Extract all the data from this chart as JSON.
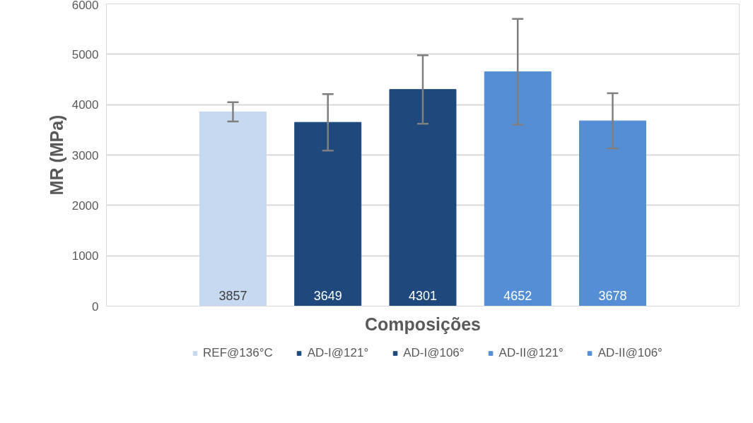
{
  "chart_data": {
    "type": "bar",
    "categories": [
      null
    ],
    "xlabel": "Composições",
    "ylabel": "MR (MPa)",
    "ylim": [
      0,
      6000
    ],
    "yticks": [
      0,
      1000,
      2000,
      3000,
      4000,
      5000,
      6000
    ],
    "grid": "y",
    "legend": "bottom",
    "data_labels": true,
    "series": [
      {
        "name": "REF@136°C",
        "color": "#c6d9f0",
        "values": [
          3857
        ],
        "errors": [
          190
        ]
      },
      {
        "name": "AD-I@121°",
        "color": "#1f497d",
        "values": [
          3649
        ],
        "errors": [
          560
        ]
      },
      {
        "name": "AD-I@106°",
        "color": "#1f497d",
        "values": [
          4301
        ],
        "errors": [
          680
        ]
      },
      {
        "name": "AD-II@121°",
        "color": "#558ed5",
        "values": [
          4652
        ],
        "errors": [
          1050
        ]
      },
      {
        "name": "AD-II@106°",
        "color": "#558ed5",
        "values": [
          3678
        ],
        "errors": [
          550
        ]
      }
    ]
  }
}
